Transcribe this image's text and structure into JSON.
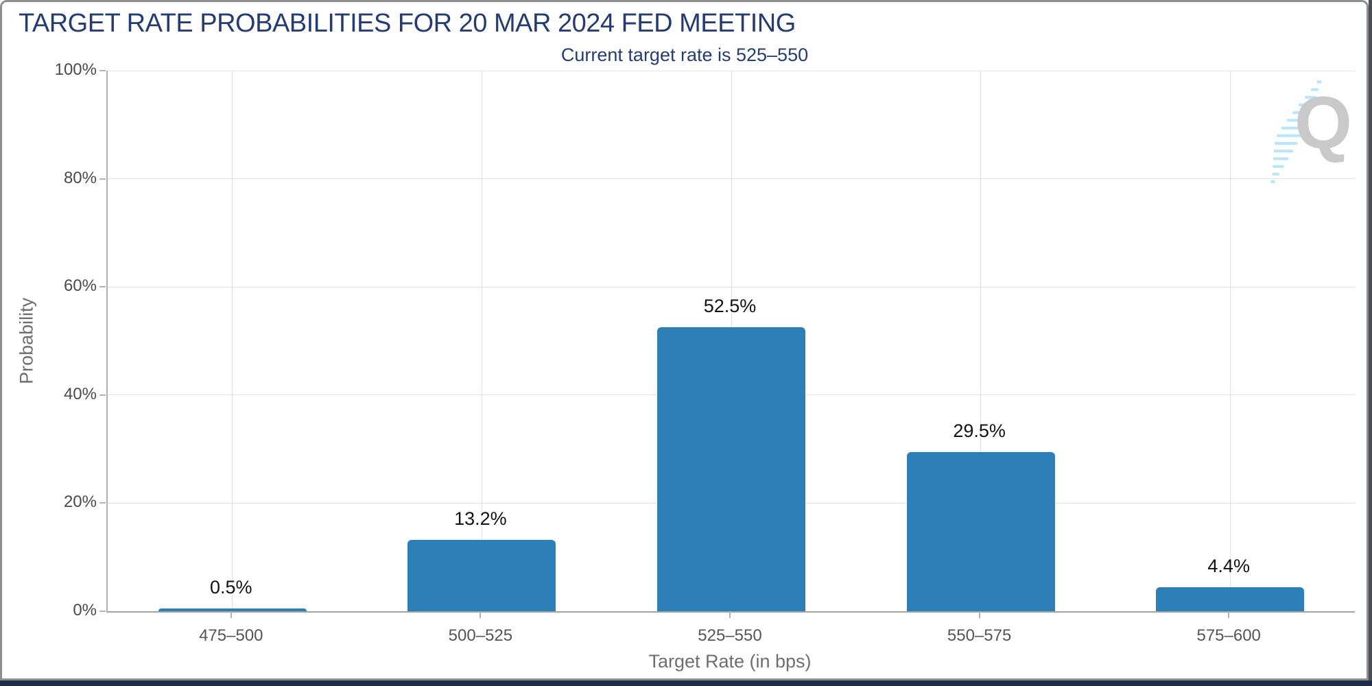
{
  "chart_data": {
    "type": "bar",
    "title": "TARGET RATE PROBABILITIES FOR 20 MAR 2024 FED MEETING",
    "subtitle": "Current target rate is 525–550",
    "xlabel": "Target Rate (in bps)",
    "ylabel": "Probability",
    "categories": [
      "475–500",
      "500–525",
      "525–550",
      "550–575",
      "575–600"
    ],
    "values": [
      0.5,
      13.2,
      52.5,
      29.5,
      4.4
    ],
    "value_labels": [
      "0.5%",
      "13.2%",
      "52.5%",
      "29.5%",
      "4.4%"
    ],
    "ylim": [
      0,
      100
    ],
    "ytick_percent": [
      0,
      20,
      40,
      60,
      80,
      100
    ],
    "ytick_labels": [
      "0%",
      "20%",
      "40%",
      "60%",
      "80%",
      "100%"
    ],
    "grid": true,
    "legend": "none",
    "bar_color": "#2d7fb8",
    "title_color": "#253c72",
    "watermark_letter": "Q",
    "watermark_streak_color": "#b9e5f8"
  }
}
